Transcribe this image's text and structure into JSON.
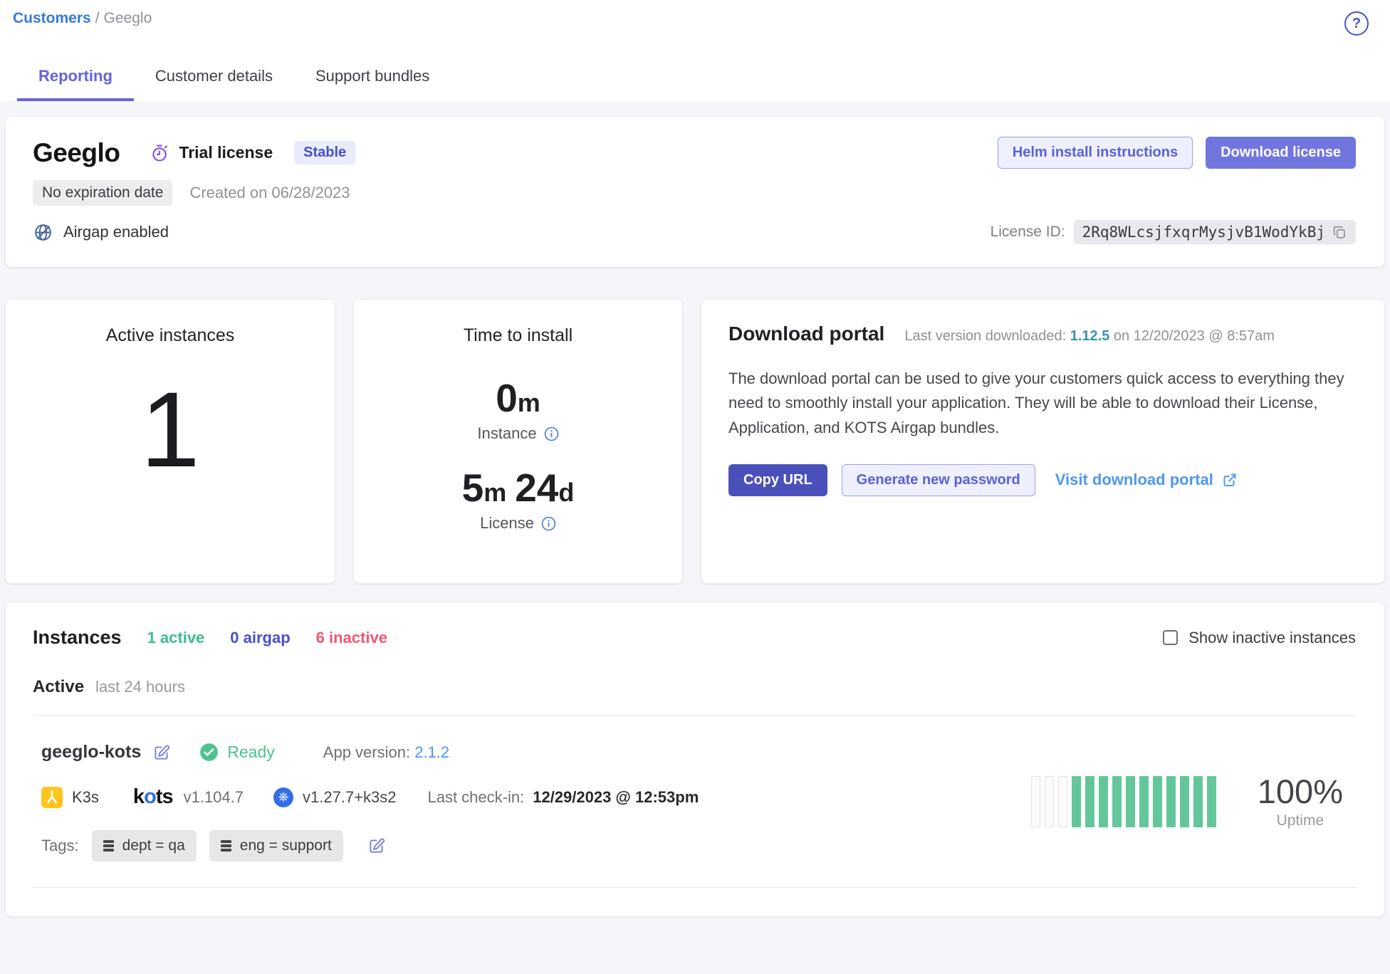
{
  "breadcrumb": {
    "root": "Customers",
    "separator": "/",
    "current": "Geeglo"
  },
  "tabs": [
    {
      "label": "Reporting",
      "active": true
    },
    {
      "label": "Customer details",
      "active": false
    },
    {
      "label": "Support bundles",
      "active": false
    }
  ],
  "customer": {
    "name": "Geeglo",
    "license_type": "Trial license",
    "channel_badge": "Stable",
    "expiration_badge": "No expiration date",
    "created_text": "Created on 06/28/2023",
    "airgap_text": "Airgap enabled",
    "helm_button": "Helm install instructions",
    "download_button": "Download license",
    "license_id_label": "License ID:",
    "license_id": "2Rq8WLcsjfxqrMysjvB1WodYkBj"
  },
  "metrics": {
    "active_instances": {
      "title": "Active instances",
      "value": "1"
    },
    "time_to_install": {
      "title": "Time to install",
      "instance_value": "0",
      "instance_unit": "m",
      "instance_label": "Instance",
      "license_value_1": "5",
      "license_unit_1": "m",
      "license_value_2": "24",
      "license_unit_2": "d",
      "license_label": "License"
    }
  },
  "download_portal": {
    "title": "Download portal",
    "last_version_prefix": "Last version downloaded:",
    "last_version": "1.12.5",
    "last_version_suffix": "on 12/20/2023 @ 8:57am",
    "description": "The download portal can be used to give your customers quick access to everything they need to smoothly install your application. They will be able to download their License, Application, and KOTS Airgap bundles.",
    "copy_url_button": "Copy URL",
    "generate_password_button": "Generate new password",
    "visit_portal_link": "Visit download portal"
  },
  "instances": {
    "title": "Instances",
    "counts": [
      {
        "label": "1 active",
        "kind": "active"
      },
      {
        "label": "0 airgap",
        "kind": "airgap"
      },
      {
        "label": "6 inactive",
        "kind": "inactive"
      }
    ],
    "show_inactive_label": "Show inactive instances",
    "active_heading": "Active",
    "active_subheading": "last 24 hours",
    "row": {
      "name": "geeglo-kots",
      "status": "Ready",
      "app_version_label": "App version:",
      "app_version": "2.1.2",
      "distribution": "K3s",
      "kots_logo": {
        "k": "k",
        "o": "o",
        "ts": "ts"
      },
      "kots_version": "v1.104.7",
      "k8s_version": "v1.27.7+k3s2",
      "last_checkin_label": "Last check-in:",
      "last_checkin": "12/29/2023 @ 12:53pm",
      "tags_label": "Tags:",
      "tags": [
        "dept = qa",
        "eng = support"
      ],
      "uptime_value": "100%",
      "uptime_label": "Uptime",
      "uptime_bars": [
        "empty",
        "empty",
        "empty",
        "up",
        "up",
        "up",
        "up",
        "up",
        "up",
        "up",
        "up",
        "up",
        "up",
        "up"
      ]
    }
  },
  "colors": {
    "accent_indigo": "#6563dc",
    "button_primary": "#7176df",
    "button_dark": "#4a50ba",
    "link_blue": "#4b96f3",
    "breadcrumb_blue": "#3379da",
    "teal_version": "#3794ab",
    "status_green": "#4cc38d",
    "bars_green": "#63c79b",
    "count_airgap": "#4a50c5",
    "count_inactive": "#ee5873",
    "timer_purple": "#8a52e8",
    "k8s_blue": "#326de6",
    "k3s_yellow": "#ffc51f"
  }
}
